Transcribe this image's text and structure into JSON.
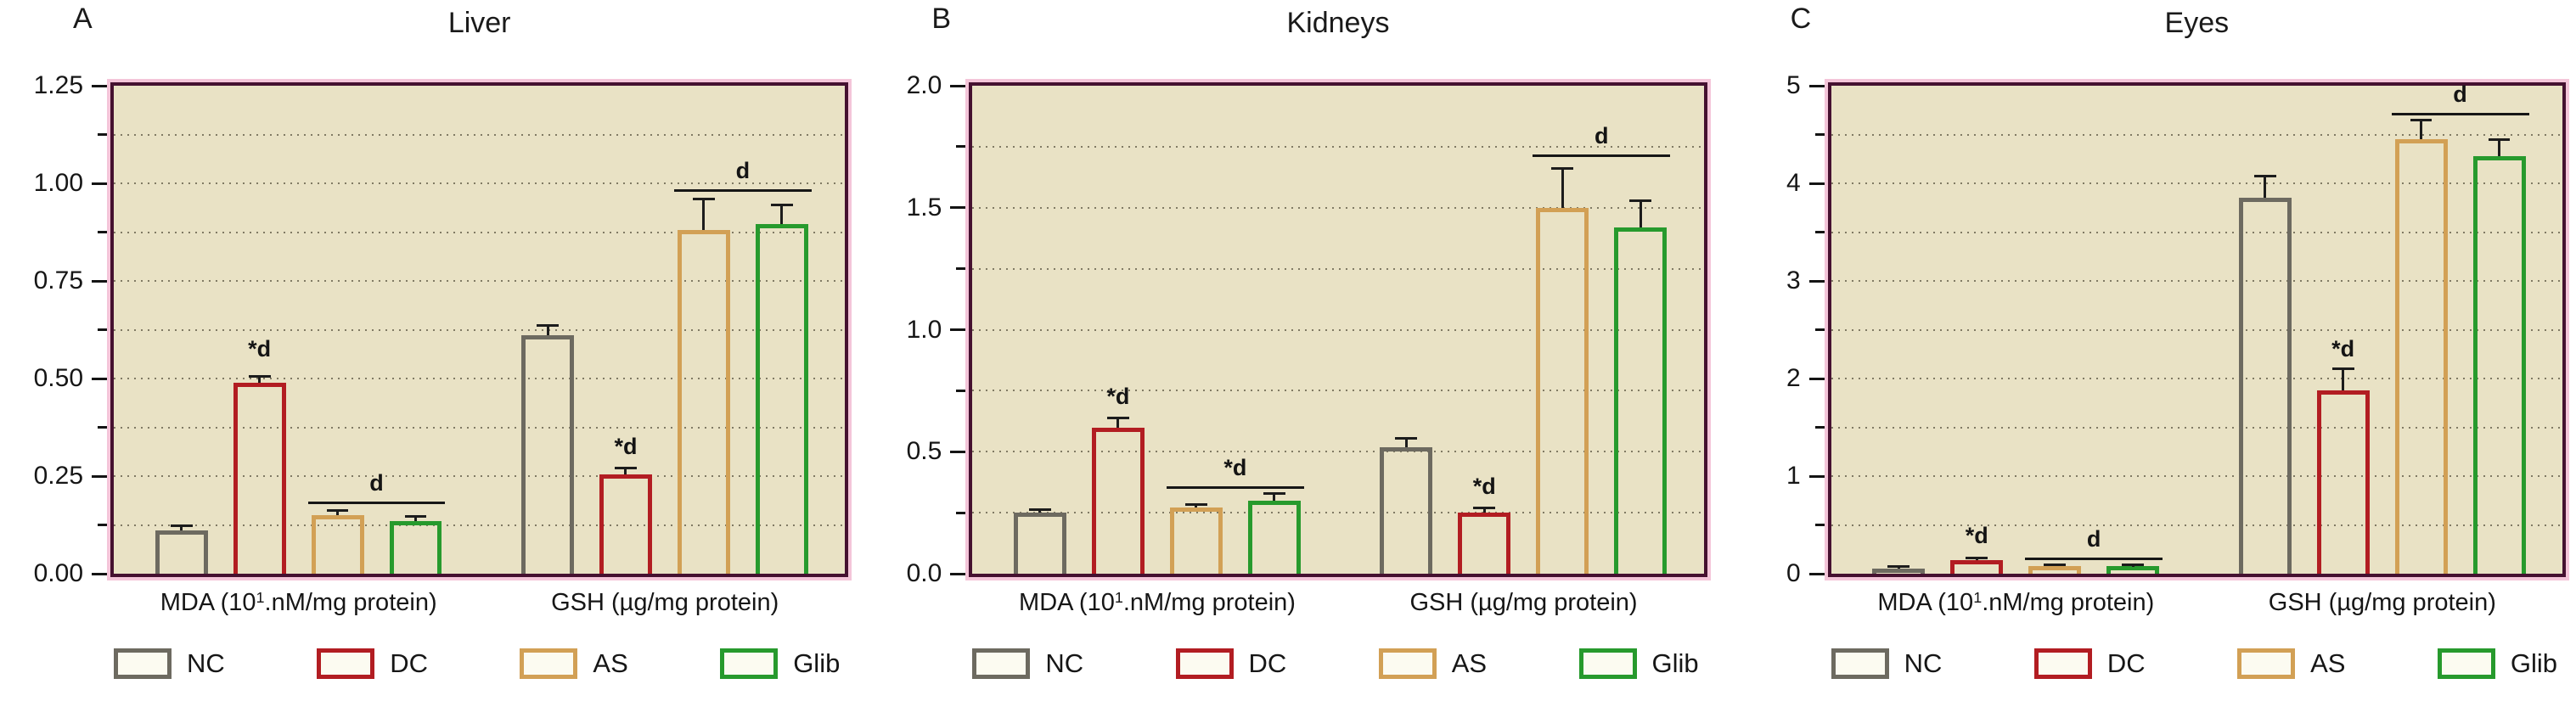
{
  "figure": {
    "background": "#ffffff",
    "plot_background": "#e9e2c5",
    "frame_color": "#451130",
    "frame_halo_color": "#f4c5d9",
    "gridline_color": "#6e6853",
    "error_bar_color": "#1c1c1c"
  },
  "series": [
    {
      "key": "NC",
      "label": "NC",
      "color": "#6d6a60"
    },
    {
      "key": "DC",
      "label": "DC",
      "color": "#b21d22"
    },
    {
      "key": "AS",
      "label": "AS",
      "color": "#d2a055"
    },
    {
      "key": "Glib",
      "label": "Glib",
      "color": "#279a2d"
    }
  ],
  "legend": {
    "items": [
      "NC",
      "DC",
      "AS",
      "Glib"
    ]
  },
  "chart_data": [
    {
      "type": "bar",
      "panel_label": "A",
      "title": "Liver",
      "ylim": [
        0,
        1.25
      ],
      "major_tick_step": 0.25,
      "minor_tick_step": 0.125,
      "tick_decimals": 2,
      "grid": "dotted",
      "legend_position": "bottom",
      "categories": [
        [
          "MDA (10",
          "1",
          ".nM/mg protein)"
        ],
        [
          "GSH (µg/mg protein)",
          "",
          ""
        ]
      ],
      "series_order": [
        "NC",
        "DC",
        "AS",
        "Glib"
      ],
      "groups": [
        {
          "values": [
            0.11,
            0.49,
            0.15,
            0.135
          ],
          "errors": [
            0.012,
            0.015,
            0.013,
            0.012
          ]
        },
        {
          "values": [
            0.61,
            0.255,
            0.88,
            0.895
          ],
          "errors": [
            0.025,
            0.015,
            0.08,
            0.05
          ]
        }
      ],
      "annotations": [
        {
          "type": "star",
          "text": "*d",
          "group": 0,
          "bar": 1,
          "y": 0.545
        },
        {
          "type": "bracket",
          "text": "d",
          "group": 0,
          "bars": [
            2,
            3
          ],
          "y": 0.185
        },
        {
          "type": "star",
          "text": "*d",
          "group": 1,
          "bar": 1,
          "y": 0.295
        },
        {
          "type": "bracket",
          "text": "d",
          "group": 1,
          "bars": [
            2,
            3
          ],
          "y": 0.985
        }
      ]
    },
    {
      "type": "bar",
      "panel_label": "B",
      "title": "Kidneys",
      "ylim": [
        0,
        2.0
      ],
      "major_tick_step": 0.5,
      "minor_tick_step": 0.25,
      "tick_decimals": 1,
      "grid": "dotted",
      "legend_position": "bottom",
      "categories": [
        [
          "MDA (10",
          "1",
          ".nM/mg protein)"
        ],
        [
          "GSH (µg/mg protein)",
          "",
          ""
        ]
      ],
      "series_order": [
        "NC",
        "DC",
        "AS",
        "Glib"
      ],
      "groups": [
        {
          "values": [
            0.25,
            0.6,
            0.27,
            0.3
          ],
          "errors": [
            0.012,
            0.04,
            0.015,
            0.03
          ]
        },
        {
          "values": [
            0.52,
            0.25,
            1.5,
            1.42
          ],
          "errors": [
            0.035,
            0.02,
            0.16,
            0.11
          ]
        }
      ],
      "annotations": [
        {
          "type": "star",
          "text": "*d",
          "group": 0,
          "bar": 1,
          "y": 0.68
        },
        {
          "type": "bracket",
          "text": "*d",
          "group": 0,
          "bars": [
            2,
            3
          ],
          "y": 0.36
        },
        {
          "type": "star",
          "text": "*d",
          "group": 1,
          "bar": 1,
          "y": 0.31
        },
        {
          "type": "bracket",
          "text": "d",
          "group": 1,
          "bars": [
            2,
            3
          ],
          "y": 1.72
        }
      ]
    },
    {
      "type": "bar",
      "panel_label": "C",
      "title": "Eyes",
      "ylim": [
        0,
        5
      ],
      "major_tick_step": 1,
      "minor_tick_step": 0.5,
      "tick_decimals": 0,
      "grid": "dotted",
      "legend_position": "bottom",
      "categories": [
        [
          "MDA (10",
          "1",
          ".nM/mg protein)"
        ],
        [
          "GSH (µg/mg protein)",
          "",
          ""
        ]
      ],
      "series_order": [
        "NC",
        "DC",
        "AS",
        "Glib"
      ],
      "groups": [
        {
          "values": [
            0.05,
            0.14,
            0.08,
            0.08
          ],
          "errors": [
            0.02,
            0.02,
            0.015,
            0.01
          ]
        },
        {
          "values": [
            3.85,
            1.88,
            4.45,
            4.28
          ],
          "errors": [
            0.22,
            0.22,
            0.2,
            0.17
          ]
        }
      ],
      "annotations": [
        {
          "type": "star",
          "text": "*d",
          "group": 0,
          "bar": 1,
          "y": 0.27
        },
        {
          "type": "bracket",
          "text": "d",
          "group": 0,
          "bars": [
            2,
            3
          ],
          "y": 0.165
        },
        {
          "type": "star",
          "text": "*d",
          "group": 1,
          "bar": 1,
          "y": 2.18
        },
        {
          "type": "bracket",
          "text": "d",
          "group": 1,
          "bars": [
            2,
            3
          ],
          "y": 4.72
        }
      ]
    }
  ]
}
